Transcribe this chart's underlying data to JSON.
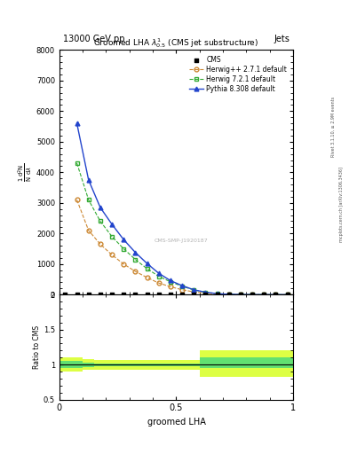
{
  "title_top": "13000 GeV pp",
  "title_right": "Jets",
  "plot_title": "Groomed LHA $\\lambda^{1}_{0.5}$ (CMS jet substructure)",
  "ylabel_main": "$\\frac{1}{\\mathrm{N}} \\frac{\\mathrm{d}^2\\mathrm{N}}{\\mathrm{d}\\lambda}$",
  "ylabel_ratio": "Ratio to CMS",
  "xlabel": "groomed LHA",
  "watermark": "CMS-SMP-J1920187",
  "right_label1": "Rivet 3.1.10, ≥ 2.9M events",
  "right_label2": "mcplots.cern.ch [arXiv:1306.3436]",
  "cms_x": [
    0.025,
    0.075,
    0.125,
    0.175,
    0.225,
    0.275,
    0.325,
    0.375,
    0.425,
    0.475,
    0.525,
    0.575,
    0.625,
    0.675,
    0.725,
    0.775,
    0.825,
    0.875,
    0.925,
    0.975
  ],
  "cms_y": [
    0,
    0,
    0,
    0,
    0,
    0,
    0,
    0,
    0,
    0,
    0,
    0,
    0,
    0,
    0,
    0,
    0,
    0,
    0,
    0
  ],
  "herwig_x": [
    0.075,
    0.125,
    0.175,
    0.225,
    0.275,
    0.325,
    0.375,
    0.425,
    0.475,
    0.525,
    0.575,
    0.625,
    0.675,
    0.725,
    0.775,
    0.825,
    0.875,
    0.925,
    0.975
  ],
  "herwig_y": [
    3100,
    2100,
    1650,
    1300,
    1000,
    760,
    560,
    380,
    260,
    160,
    90,
    45,
    18,
    7,
    3,
    1,
    0.4,
    0.2,
    0.05
  ],
  "herwig72_x": [
    0.075,
    0.125,
    0.175,
    0.225,
    0.275,
    0.325,
    0.375,
    0.425,
    0.475,
    0.525,
    0.575,
    0.625,
    0.675,
    0.725,
    0.775,
    0.825,
    0.875,
    0.925,
    0.975
  ],
  "herwig72_y": [
    4300,
    3100,
    2400,
    1900,
    1500,
    1150,
    850,
    600,
    420,
    275,
    155,
    78,
    32,
    12,
    5,
    2,
    0.7,
    0.25,
    0.08
  ],
  "pythia_x": [
    0.075,
    0.125,
    0.175,
    0.225,
    0.275,
    0.325,
    0.375,
    0.425,
    0.475,
    0.525,
    0.575,
    0.625,
    0.675,
    0.725,
    0.775,
    0.825,
    0.875,
    0.925,
    0.975
  ],
  "pythia_y": [
    5600,
    3750,
    2850,
    2300,
    1800,
    1380,
    1020,
    700,
    460,
    295,
    160,
    80,
    32,
    12,
    5,
    2,
    0.8,
    0.3,
    0.08
  ],
  "herwig_color": "#cc8833",
  "herwig72_color": "#33aa33",
  "pythia_color": "#2244cc",
  "cms_color": "#000000",
  "band_x": [
    0.0,
    0.1,
    0.15,
    0.2,
    0.25,
    0.3,
    0.35,
    0.4,
    0.45,
    0.5,
    0.55,
    0.6,
    0.65,
    0.7,
    0.75,
    0.8,
    0.85,
    0.9,
    0.95,
    1.0
  ],
  "band_inner_low": [
    0.95,
    0.97,
    0.98,
    0.98,
    0.98,
    0.98,
    0.98,
    0.98,
    0.98,
    0.98,
    0.98,
    0.95,
    0.95,
    0.95,
    0.95,
    0.95,
    0.95,
    0.95,
    0.95,
    0.95
  ],
  "band_inner_high": [
    1.05,
    1.03,
    1.02,
    1.02,
    1.02,
    1.02,
    1.02,
    1.02,
    1.02,
    1.02,
    1.02,
    1.1,
    1.1,
    1.1,
    1.1,
    1.1,
    1.1,
    1.1,
    1.1,
    1.1
  ],
  "band_outer_low": [
    0.9,
    0.92,
    0.93,
    0.93,
    0.93,
    0.93,
    0.93,
    0.93,
    0.93,
    0.93,
    0.93,
    0.83,
    0.83,
    0.83,
    0.83,
    0.83,
    0.83,
    0.83,
    0.83,
    0.83
  ],
  "band_outer_high": [
    1.1,
    1.08,
    1.07,
    1.07,
    1.07,
    1.07,
    1.07,
    1.07,
    1.07,
    1.07,
    1.07,
    1.2,
    1.2,
    1.2,
    1.2,
    1.2,
    1.2,
    1.2,
    1.2,
    1.2
  ],
  "ylim_main": [
    0,
    8000
  ],
  "ylim_ratio": [
    0.5,
    2.0
  ],
  "xlim": [
    0.0,
    1.0
  ],
  "yticks_main": [
    0,
    1000,
    2000,
    3000,
    4000,
    5000,
    6000,
    7000,
    8000
  ],
  "ytick_labels_main": [
    "0",
    "1000",
    "2000",
    "3000",
    "4000",
    "5000",
    "6000",
    "7000",
    "8000"
  ],
  "yticks_ratio": [
    0.5,
    1.0,
    1.5,
    2.0
  ],
  "ytick_labels_ratio": [
    "0.5",
    "1",
    "1.5",
    "2"
  ]
}
